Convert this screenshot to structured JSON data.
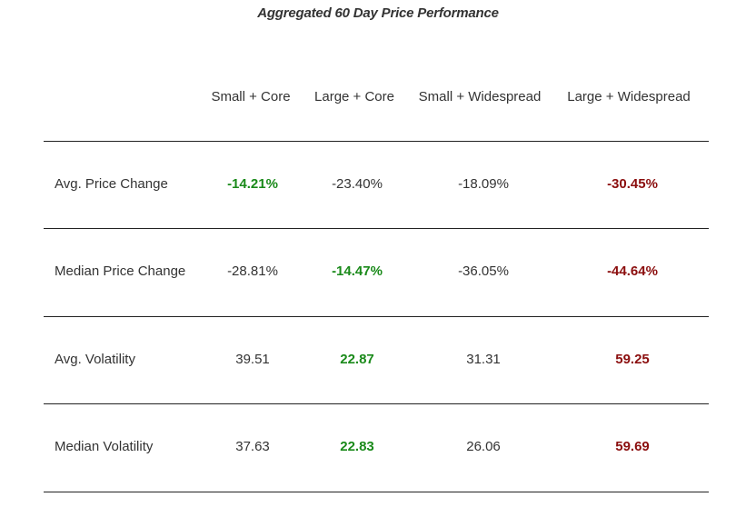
{
  "chart_data": {
    "type": "table",
    "title": "Aggregated 60 Day Price Performance",
    "columns": [
      "Small + Core",
      "Large + Core",
      "Small + Widespread",
      "Large + Widespread"
    ],
    "rows": [
      {
        "label": "Avg. Price Change",
        "values": [
          "-14.21%",
          "-23.40%",
          "-18.09%",
          "-30.45%"
        ],
        "highlight": [
          "best",
          "none",
          "none",
          "worst"
        ]
      },
      {
        "label": "Median Price Change",
        "values": [
          "-28.81%",
          "-14.47%",
          "-36.05%",
          "-44.64%"
        ],
        "highlight": [
          "none",
          "best",
          "none",
          "worst"
        ]
      },
      {
        "label": "Avg. Volatility",
        "values": [
          "39.51",
          "22.87",
          "31.31",
          "59.25"
        ],
        "highlight": [
          "none",
          "best",
          "none",
          "worst"
        ]
      },
      {
        "label": "Median Volatility",
        "values": [
          "37.63",
          "22.83",
          "26.06",
          "59.69"
        ],
        "highlight": [
          "none",
          "best",
          "none",
          "worst"
        ]
      }
    ],
    "colors": {
      "best": "#1a8a1a",
      "worst": "#8b0e0e",
      "text": "#333333",
      "rule": "#222222"
    }
  }
}
